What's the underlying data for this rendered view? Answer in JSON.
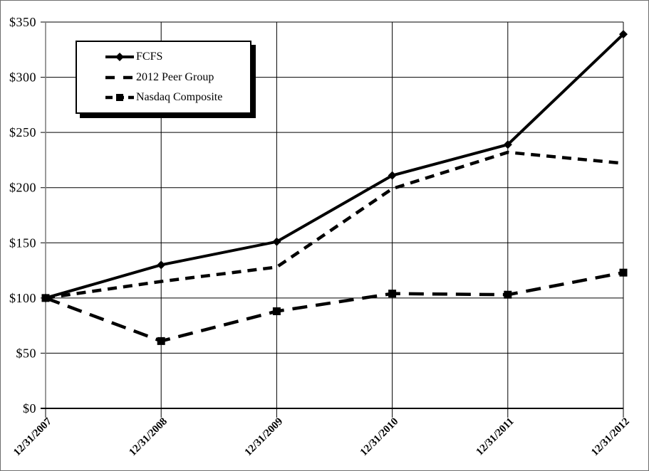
{
  "chart_data": {
    "type": "line",
    "title": "",
    "categories": [
      "12/31/2007",
      "12/31/2008",
      "12/31/2009",
      "12/31/2010",
      "12/31/2011",
      "12/31/2012"
    ],
    "series": [
      {
        "name": "FCFS",
        "values": [
          100,
          130,
          151,
          211,
          239,
          339
        ],
        "line_style": "solid",
        "marker": "diamond",
        "color": "#000000"
      },
      {
        "name": "2012 Peer Group",
        "values": [
          100,
          115,
          128,
          199,
          232,
          222
        ],
        "line_style": "dashed",
        "marker": "none",
        "color": "#000000"
      },
      {
        "name": "Nasdaq Composite",
        "values": [
          100,
          61,
          88,
          104,
          103,
          123
        ],
        "line_style": "long-dash",
        "marker": "square",
        "color": "#000000"
      }
    ],
    "y_axis": {
      "ticks": [
        "$0",
        "$50",
        "$100",
        "$150",
        "$200",
        "$250",
        "$300",
        "$350"
      ],
      "min": 0,
      "max": 350,
      "step": 50
    },
    "grid": true,
    "legend_position": "top-left",
    "colors": {
      "line": "#000000",
      "grid": "#000000",
      "axis": "#808080",
      "background": "#ffffff"
    }
  }
}
